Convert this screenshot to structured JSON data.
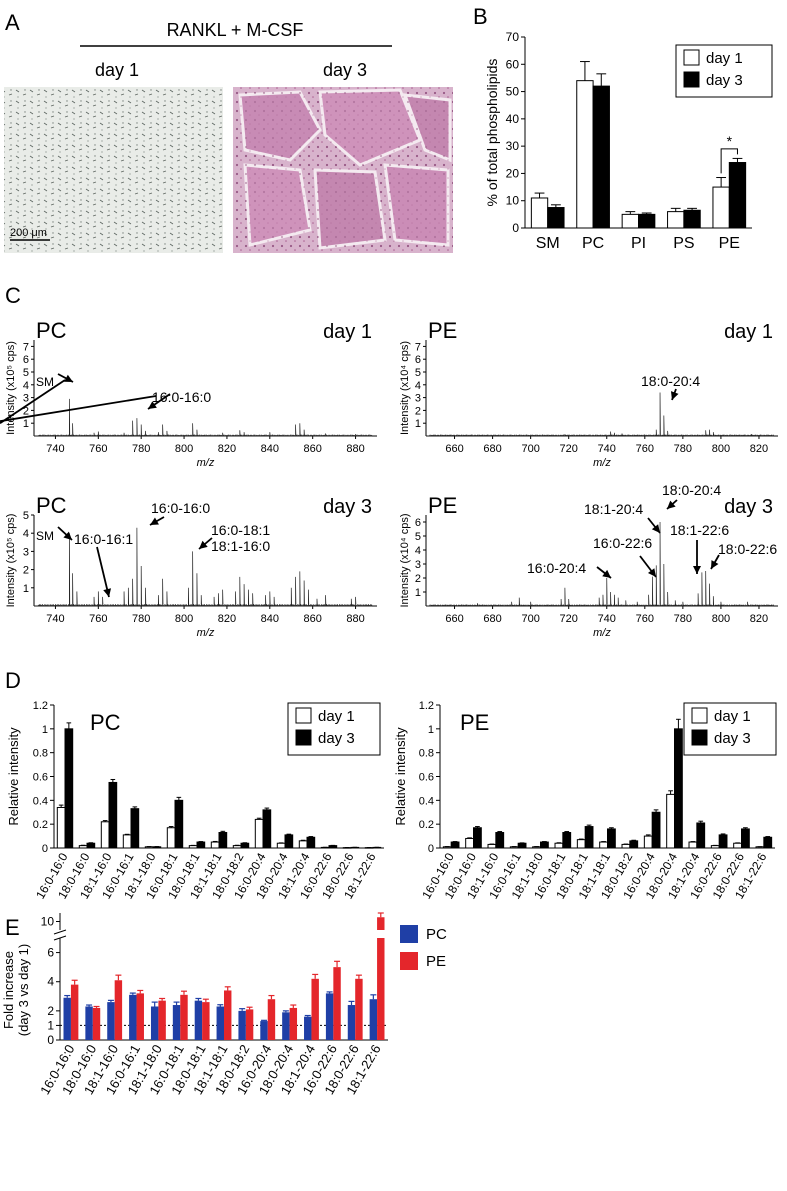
{
  "panel_labels": {
    "a": "A",
    "b": "B",
    "c": "C",
    "d": "D",
    "e": "E"
  },
  "panel_a": {
    "treatment": "RANKL + M-CSF",
    "day1": "day 1",
    "day3": "day 3",
    "scale_bar": "200 μm"
  },
  "chart_data": [
    {
      "id": "B",
      "type": "bar",
      "ylabel": "% of total phospholipids",
      "ylim": [
        0,
        70
      ],
      "yticks": [
        0,
        10,
        20,
        30,
        40,
        50,
        60,
        70
      ],
      "categories": [
        "SM",
        "PC",
        "PI",
        "PS",
        "PE"
      ],
      "series": [
        {
          "name": "day 1",
          "color": "#ffffff",
          "values": [
            11,
            54,
            5,
            6,
            15
          ],
          "errors": [
            1.8,
            7,
            1,
            1.2,
            3.5
          ]
        },
        {
          "name": "day 3",
          "color": "#000000",
          "values": [
            7.5,
            52,
            5,
            6.5,
            24
          ],
          "errors": [
            1,
            4.5,
            0.5,
            0.7,
            1.5
          ]
        }
      ],
      "annotation": "*",
      "legend": "top-right"
    },
    {
      "id": "C-PC-day1",
      "type": "line",
      "label": "PC",
      "day": "day 1",
      "ylabel": "Intensity (x10⁵ cps)",
      "xlabel": "m/z",
      "xlim": [
        730,
        890
      ],
      "xticks": [
        740,
        760,
        780,
        800,
        820,
        840,
        860,
        880
      ],
      "ylim": [
        0,
        7.5
      ],
      "yticks": [
        1,
        2,
        3,
        4,
        5,
        6,
        7
      ],
      "peaks": [
        [
          746.6,
          2.9
        ],
        [
          748,
          1.0
        ],
        [
          758,
          0.25
        ],
        [
          760,
          0.35
        ],
        [
          772,
          0.25
        ],
        [
          776,
          1.2
        ],
        [
          778,
          1.4
        ],
        [
          780,
          0.9
        ],
        [
          782,
          0.4
        ],
        [
          788,
          0.3
        ],
        [
          790,
          0.9
        ],
        [
          792,
          0.4
        ],
        [
          804,
          1.0
        ],
        [
          806,
          0.5
        ],
        [
          818,
          0.25
        ],
        [
          826,
          0.45
        ],
        [
          828,
          0.3
        ],
        [
          840,
          0.3
        ],
        [
          852,
          0.9
        ],
        [
          854,
          1.0
        ],
        [
          856,
          0.5
        ],
        [
          866,
          0.2
        ],
        [
          880,
          0.15
        ]
      ],
      "annotations": [
        {
          "text": "SM",
          "x": 746.6
        },
        {
          "text": "16:0-16:0",
          "x": 778
        }
      ]
    },
    {
      "id": "C-PE-day1",
      "type": "line",
      "label": "PE",
      "day": "day 1",
      "ylabel": "Intensity (x10⁴ cps)",
      "xlabel": "m/z",
      "xlim": [
        645,
        830
      ],
      "xticks": [
        660,
        680,
        700,
        720,
        740,
        760,
        780,
        800,
        820
      ],
      "ylim": [
        0,
        7.5
      ],
      "yticks": [
        1,
        2,
        3,
        4,
        5,
        6,
        7
      ],
      "peaks": [
        [
          700,
          0.1
        ],
        [
          718,
          0.15
        ],
        [
          742,
          0.35
        ],
        [
          744,
          0.25
        ],
        [
          748,
          0.2
        ],
        [
          766,
          0.5
        ],
        [
          768,
          3.4
        ],
        [
          770,
          1.6
        ],
        [
          772,
          0.4
        ],
        [
          792,
          0.45
        ],
        [
          794,
          0.5
        ],
        [
          796,
          0.3
        ],
        [
          816,
          0.15
        ]
      ],
      "annotations": [
        {
          "text": "18:0-20:4",
          "x": 768
        }
      ]
    },
    {
      "id": "C-PC-day3",
      "type": "line",
      "label": "PC",
      "day": "day 3",
      "ylabel": "Intensity (x10⁵ cps)",
      "xlabel": "m/z",
      "xlim": [
        730,
        890
      ],
      "xticks": [
        740,
        760,
        780,
        800,
        820,
        840,
        860,
        880
      ],
      "ylim": [
        0,
        5
      ],
      "yticks": [
        1,
        2,
        3,
        4,
        5
      ],
      "peaks": [
        [
          746.6,
          4.0
        ],
        [
          748,
          1.8
        ],
        [
          750,
          0.8
        ],
        [
          758,
          0.5
        ],
        [
          760,
          0.8
        ],
        [
          762,
          0.5
        ],
        [
          772,
          0.8
        ],
        [
          774,
          1.0
        ],
        [
          776,
          1.5
        ],
        [
          778,
          4.3
        ],
        [
          780,
          2.2
        ],
        [
          782,
          1.0
        ],
        [
          788,
          0.6
        ],
        [
          790,
          1.5
        ],
        [
          792,
          0.8
        ],
        [
          802,
          1.0
        ],
        [
          804,
          3.0
        ],
        [
          806,
          1.8
        ],
        [
          808,
          0.6
        ],
        [
          814,
          0.5
        ],
        [
          816,
          0.7
        ],
        [
          818,
          0.9
        ],
        [
          824,
          0.8
        ],
        [
          826,
          1.6
        ],
        [
          828,
          1.2
        ],
        [
          830,
          0.9
        ],
        [
          832,
          0.7
        ],
        [
          838,
          0.6
        ],
        [
          840,
          0.8
        ],
        [
          842,
          0.5
        ],
        [
          850,
          1.0
        ],
        [
          852,
          1.6
        ],
        [
          854,
          1.9
        ],
        [
          856,
          1.4
        ],
        [
          858,
          0.9
        ],
        [
          862,
          0.4
        ],
        [
          866,
          0.6
        ],
        [
          878,
          0.4
        ],
        [
          880,
          0.5
        ]
      ],
      "annotations": [
        {
          "text": "SM",
          "x": 746.6
        },
        {
          "text": "16:0-16:1",
          "x": 776
        },
        {
          "text": "16:0-16:0",
          "x": 778
        },
        {
          "text": "16:0-18:1",
          "x": 804
        },
        {
          "text": "18:1-16:0",
          "x": 804
        }
      ]
    },
    {
      "id": "C-PE-day3",
      "type": "line",
      "label": "PE",
      "day": "day 3",
      "ylabel": "Intensity (x10⁴ cps)",
      "xlabel": "m/z",
      "xlim": [
        645,
        830
      ],
      "xticks": [
        660,
        680,
        700,
        720,
        740,
        760,
        780,
        800,
        820
      ],
      "ylim": [
        0,
        6.5
      ],
      "yticks": [
        1,
        2,
        3,
        4,
        5,
        6
      ],
      "peaks": [
        [
          672,
          0.2
        ],
        [
          690,
          0.3
        ],
        [
          694,
          0.6
        ],
        [
          700,
          0.3
        ],
        [
          716,
          0.5
        ],
        [
          718,
          1.3
        ],
        [
          720,
          0.5
        ],
        [
          736,
          0.6
        ],
        [
          738,
          0.8
        ],
        [
          740,
          2.0
        ],
        [
          742,
          1.0
        ],
        [
          744,
          0.8
        ],
        [
          746,
          0.6
        ],
        [
          750,
          0.4
        ],
        [
          756,
          0.3
        ],
        [
          762,
          0.8
        ],
        [
          764,
          2.1
        ],
        [
          766,
          2.9
        ],
        [
          768,
          6.0
        ],
        [
          770,
          3.0
        ],
        [
          772,
          1.0
        ],
        [
          776,
          0.4
        ],
        [
          780,
          0.3
        ],
        [
          788,
          0.9
        ],
        [
          790,
          2.4
        ],
        [
          792,
          2.5
        ],
        [
          794,
          1.6
        ],
        [
          796,
          0.7
        ],
        [
          800,
          0.3
        ],
        [
          814,
          0.3
        ]
      ],
      "annotations": [
        {
          "text": "16:0-20:4",
          "x": 740
        },
        {
          "text": "16:0-22:6",
          "x": 764
        },
        {
          "text": "18:1-20:4",
          "x": 766
        },
        {
          "text": "18:0-20:4",
          "x": 768
        },
        {
          "text": "18:1-22:6",
          "x": 790
        },
        {
          "text": "18:0-22:6",
          "x": 792
        }
      ]
    },
    {
      "id": "D-PC",
      "type": "bar",
      "label": "PC",
      "ylabel": "Relative intensity",
      "ylim": [
        0,
        1.2
      ],
      "yticks": [
        0,
        0.2,
        0.4,
        0.6,
        0.8,
        1.0,
        1.2
      ],
      "categories": [
        "16:0-16:0",
        "18:0-16:0",
        "18:1-16:0",
        "16:0-16:1",
        "18:1-18:0",
        "16:0-18:1",
        "18:0-18:1",
        "18:1-18:1",
        "18:0-18:2",
        "16:0-20:4",
        "18:0-20:4",
        "18:1-20:4",
        "16:0-22:6",
        "18:0-22:6",
        "18:1-22:6"
      ],
      "series": [
        {
          "name": "day 1",
          "color": "#ffffff",
          "values": [
            0.34,
            0.02,
            0.22,
            0.11,
            0.01,
            0.17,
            0.02,
            0.05,
            0.02,
            0.24,
            0.04,
            0.06,
            0.005,
            0.003,
            0.003
          ],
          "errors": [
            0.02,
            0.003,
            0.01,
            0.005,
            0.002,
            0.01,
            0.002,
            0.005,
            0.003,
            0.01,
            0.003,
            0.005,
            0.001,
            0.001,
            0.001
          ]
        },
        {
          "name": "day 3",
          "color": "#000000",
          "values": [
            1.0,
            0.04,
            0.55,
            0.33,
            0.01,
            0.4,
            0.05,
            0.13,
            0.04,
            0.32,
            0.11,
            0.09,
            0.02,
            0.005,
            0.005
          ],
          "errors": [
            0.05,
            0.004,
            0.025,
            0.015,
            0.002,
            0.025,
            0.004,
            0.01,
            0.004,
            0.015,
            0.006,
            0.006,
            0.002,
            0.001,
            0.001
          ]
        }
      ],
      "legend": "top-right"
    },
    {
      "id": "D-PE",
      "type": "bar",
      "label": "PE",
      "ylabel": "Relative intensity",
      "ylim": [
        0,
        1.2
      ],
      "yticks": [
        0,
        0.2,
        0.4,
        0.6,
        0.8,
        1.0,
        1.2
      ],
      "categories": [
        "16:0-16:0",
        "18:0-16:0",
        "18:1-16:0",
        "16:0-16:1",
        "18:1-18:0",
        "16:0-18:1",
        "18:0-18:1",
        "18:1-18:1",
        "18:0-18:2",
        "16:0-20:4",
        "18:0-20:4",
        "18:1-20:4",
        "16:0-22:6",
        "18:0-22:6",
        "18:1-22:6"
      ],
      "series": [
        {
          "name": "day 1",
          "color": "#ffffff",
          "values": [
            0.01,
            0.08,
            0.03,
            0.01,
            0.01,
            0.04,
            0.07,
            0.05,
            0.03,
            0.1,
            0.45,
            0.05,
            0.02,
            0.04,
            0.01
          ],
          "errors": [
            0.002,
            0.005,
            0.003,
            0.002,
            0.002,
            0.004,
            0.005,
            0.004,
            0.003,
            0.01,
            0.03,
            0.004,
            0.002,
            0.003,
            0.001
          ]
        },
        {
          "name": "day 3",
          "color": "#000000",
          "values": [
            0.05,
            0.17,
            0.13,
            0.04,
            0.05,
            0.13,
            0.18,
            0.16,
            0.06,
            0.3,
            1.0,
            0.21,
            0.11,
            0.16,
            0.09
          ],
          "errors": [
            0.004,
            0.01,
            0.008,
            0.003,
            0.004,
            0.008,
            0.012,
            0.01,
            0.005,
            0.02,
            0.08,
            0.015,
            0.008,
            0.01,
            0.006
          ]
        }
      ],
      "legend": "top-right"
    },
    {
      "id": "E",
      "type": "bar",
      "ylabel_lines": [
        "Fold increase",
        "(day 3 vs day 1)"
      ],
      "yticks": [
        0,
        1,
        2,
        4,
        6,
        10
      ],
      "yticks_upper": [
        10
      ],
      "axis_break": [
        7,
        9
      ],
      "reference_line": 1,
      "categories": [
        "16:0-16:0",
        "18:0-16:0",
        "18:1-16:0",
        "16:0-16:1",
        "18:1-18:0",
        "16:0-18:1",
        "18:0-18:1",
        "18:1-18:1",
        "18:0-18:2",
        "16:0-20:4",
        "18:0-20:4",
        "18:1-20:4",
        "16:0-22:6",
        "18:0-22:6",
        "18:1-22:6"
      ],
      "series": [
        {
          "name": "PC",
          "color": "#1f3fa6",
          "values": [
            2.9,
            2.3,
            2.6,
            3.1,
            2.3,
            2.4,
            2.7,
            2.3,
            2.0,
            1.3,
            1.9,
            1.6,
            3.2,
            2.4,
            2.8
          ],
          "errors": [
            0.15,
            0.1,
            0.12,
            0.12,
            0.3,
            0.2,
            0.15,
            0.12,
            0.15,
            0.05,
            0.1,
            0.08,
            0.1,
            0.25,
            0.3
          ]
        },
        {
          "name": "PE",
          "color": "#e4262b",
          "values": [
            3.8,
            2.2,
            4.1,
            3.2,
            2.7,
            3.1,
            2.6,
            3.4,
            2.1,
            2.8,
            2.2,
            4.2,
            5.0,
            4.2,
            10.5
          ],
          "errors": [
            0.3,
            0.1,
            0.35,
            0.2,
            0.15,
            0.25,
            0.2,
            0.25,
            0.15,
            0.25,
            0.2,
            0.3,
            0.4,
            0.25,
            0.5
          ]
        }
      ],
      "legend": "top-right"
    }
  ]
}
